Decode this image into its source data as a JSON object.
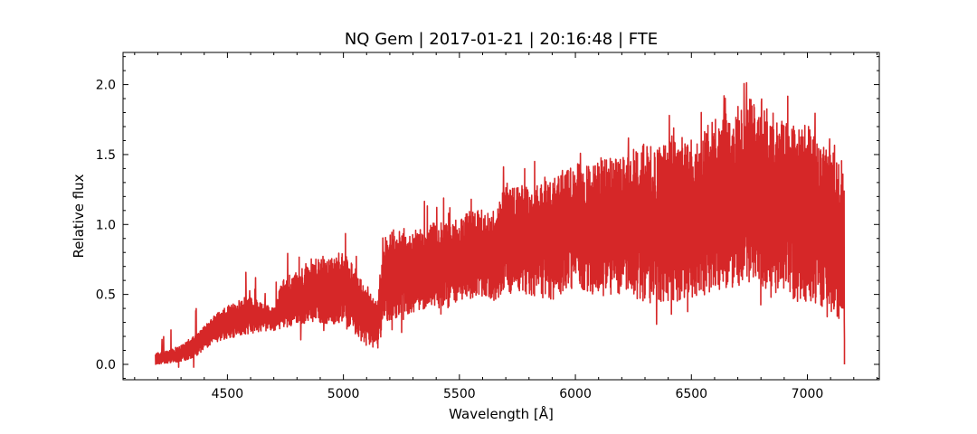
{
  "chart_data": {
    "type": "line",
    "title": "NQ Gem | 2017-01-21 | 20:16:48 | FTE",
    "xlabel": "Wavelength [Å]",
    "ylabel": "Relative flux",
    "xlim": [
      4050,
      7310
    ],
    "ylim": [
      -0.11,
      2.23
    ],
    "xticks": [
      4500,
      5000,
      5500,
      6000,
      6500,
      7000
    ],
    "yticks": [
      0.0,
      0.5,
      1.0,
      1.5,
      2.0
    ],
    "xtick_labels": [
      "4500",
      "5000",
      "5500",
      "6000",
      "6500",
      "7000"
    ],
    "ytick_labels": [
      "0.0",
      "0.5",
      "1.0",
      "1.5",
      "2.0"
    ],
    "grid": false,
    "legend": "none",
    "series": [
      {
        "color": "#d62728",
        "wavelength_range": [
          4190,
          7160
        ],
        "envelope": {
          "x": [
            4190,
            4250,
            4300,
            4350,
            4400,
            4450,
            4500,
            4550,
            4600,
            4650,
            4700,
            4740,
            4800,
            4850,
            4900,
            4950,
            5000,
            5050,
            5100,
            5150,
            5180,
            5250,
            5300,
            5350,
            5400,
            5450,
            5500,
            5550,
            5600,
            5650,
            5700,
            5750,
            5800,
            5850,
            5900,
            5950,
            6000,
            6050,
            6100,
            6150,
            6200,
            6250,
            6300,
            6350,
            6400,
            6450,
            6500,
            6550,
            6600,
            6650,
            6700,
            6750,
            6800,
            6850,
            6900,
            6950,
            7000,
            7050,
            7100,
            7160
          ],
          "upper": [
            0.08,
            0.1,
            0.14,
            0.2,
            0.28,
            0.36,
            0.42,
            0.46,
            0.5,
            0.44,
            0.4,
            0.62,
            0.66,
            0.72,
            0.78,
            0.76,
            0.8,
            0.7,
            0.52,
            0.5,
            0.92,
            0.98,
            0.96,
            1.0,
            1.02,
            1.02,
            1.05,
            1.1,
            1.12,
            1.04,
            1.3,
            1.28,
            1.25,
            1.3,
            1.35,
            1.38,
            1.45,
            1.42,
            1.48,
            1.5,
            1.5,
            1.55,
            1.58,
            1.55,
            1.6,
            1.62,
            1.65,
            1.7,
            1.75,
            1.78,
            1.85,
            1.9,
            1.88,
            1.8,
            1.8,
            1.7,
            1.72,
            1.6,
            1.55,
            1.4
          ],
          "lower": [
            0.0,
            0.01,
            0.02,
            0.04,
            0.1,
            0.16,
            0.18,
            0.2,
            0.22,
            0.24,
            0.24,
            0.26,
            0.28,
            0.3,
            0.3,
            0.28,
            0.3,
            0.22,
            0.12,
            0.1,
            0.3,
            0.35,
            0.36,
            0.4,
            0.42,
            0.4,
            0.44,
            0.46,
            0.5,
            0.45,
            0.52,
            0.5,
            0.48,
            0.48,
            0.45,
            0.52,
            0.55,
            0.52,
            0.48,
            0.5,
            0.48,
            0.46,
            0.44,
            0.42,
            0.44,
            0.45,
            0.48,
            0.5,
            0.52,
            0.55,
            0.55,
            0.58,
            0.56,
            0.52,
            0.48,
            0.45,
            0.42,
            0.4,
            0.35,
            0.3
          ]
        }
      }
    ]
  }
}
